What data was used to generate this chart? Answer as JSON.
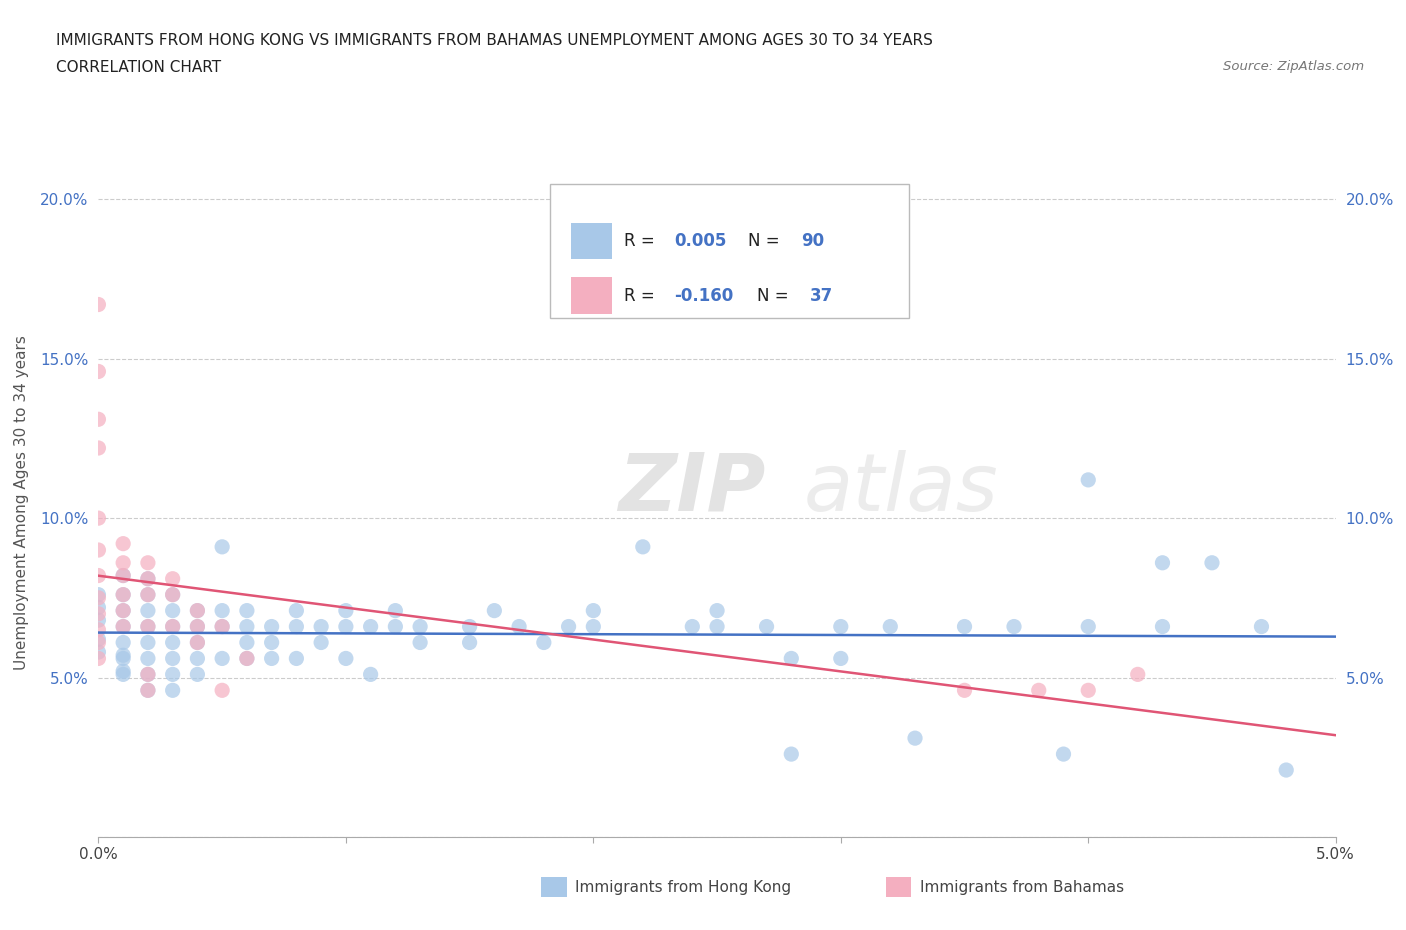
{
  "title_line1": "IMMIGRANTS FROM HONG KONG VS IMMIGRANTS FROM BAHAMAS UNEMPLOYMENT AMONG AGES 30 TO 34 YEARS",
  "title_line2": "CORRELATION CHART",
  "source_text": "Source: ZipAtlas.com",
  "ylabel": "Unemployment Among Ages 30 to 34 years",
  "xlim": [
    0.0,
    0.05
  ],
  "ylim": [
    0.0,
    0.21
  ],
  "watermark_part1": "ZIP",
  "watermark_part2": "atlas",
  "hk_color": "#a8c8e8",
  "bahamas_color": "#f4afc0",
  "hk_line_color": "#4472c4",
  "bahamas_line_color": "#e05575",
  "legend_text_color": "#4472c4",
  "hk_scatter": [
    [
      0.0,
      0.068
    ],
    [
      0.0,
      0.058
    ],
    [
      0.0,
      0.072
    ],
    [
      0.0,
      0.062
    ],
    [
      0.0,
      0.076
    ],
    [
      0.001,
      0.057
    ],
    [
      0.001,
      0.066
    ],
    [
      0.001,
      0.071
    ],
    [
      0.001,
      0.061
    ],
    [
      0.001,
      0.052
    ],
    [
      0.001,
      0.076
    ],
    [
      0.001,
      0.082
    ],
    [
      0.001,
      0.051
    ],
    [
      0.001,
      0.056
    ],
    [
      0.002,
      0.066
    ],
    [
      0.002,
      0.056
    ],
    [
      0.002,
      0.061
    ],
    [
      0.002,
      0.071
    ],
    [
      0.002,
      0.076
    ],
    [
      0.002,
      0.051
    ],
    [
      0.002,
      0.046
    ],
    [
      0.002,
      0.081
    ],
    [
      0.003,
      0.066
    ],
    [
      0.003,
      0.056
    ],
    [
      0.003,
      0.071
    ],
    [
      0.003,
      0.046
    ],
    [
      0.003,
      0.051
    ],
    [
      0.003,
      0.061
    ],
    [
      0.003,
      0.076
    ],
    [
      0.004,
      0.066
    ],
    [
      0.004,
      0.056
    ],
    [
      0.004,
      0.061
    ],
    [
      0.004,
      0.071
    ],
    [
      0.004,
      0.051
    ],
    [
      0.005,
      0.066
    ],
    [
      0.005,
      0.091
    ],
    [
      0.005,
      0.056
    ],
    [
      0.005,
      0.071
    ],
    [
      0.006,
      0.066
    ],
    [
      0.006,
      0.056
    ],
    [
      0.006,
      0.071
    ],
    [
      0.006,
      0.061
    ],
    [
      0.007,
      0.066
    ],
    [
      0.007,
      0.056
    ],
    [
      0.007,
      0.061
    ],
    [
      0.008,
      0.066
    ],
    [
      0.008,
      0.071
    ],
    [
      0.008,
      0.056
    ],
    [
      0.009,
      0.066
    ],
    [
      0.009,
      0.061
    ],
    [
      0.01,
      0.066
    ],
    [
      0.01,
      0.056
    ],
    [
      0.01,
      0.071
    ],
    [
      0.011,
      0.066
    ],
    [
      0.011,
      0.051
    ],
    [
      0.012,
      0.066
    ],
    [
      0.012,
      0.071
    ],
    [
      0.013,
      0.061
    ],
    [
      0.013,
      0.066
    ],
    [
      0.015,
      0.061
    ],
    [
      0.015,
      0.066
    ],
    [
      0.016,
      0.071
    ],
    [
      0.017,
      0.066
    ],
    [
      0.018,
      0.061
    ],
    [
      0.019,
      0.066
    ],
    [
      0.02,
      0.071
    ],
    [
      0.02,
      0.066
    ],
    [
      0.022,
      0.091
    ],
    [
      0.024,
      0.066
    ],
    [
      0.025,
      0.066
    ],
    [
      0.025,
      0.071
    ],
    [
      0.027,
      0.066
    ],
    [
      0.028,
      0.056
    ],
    [
      0.028,
      0.026
    ],
    [
      0.03,
      0.066
    ],
    [
      0.03,
      0.056
    ],
    [
      0.032,
      0.066
    ],
    [
      0.033,
      0.031
    ],
    [
      0.035,
      0.066
    ],
    [
      0.037,
      0.066
    ],
    [
      0.039,
      0.026
    ],
    [
      0.04,
      0.112
    ],
    [
      0.04,
      0.066
    ],
    [
      0.043,
      0.086
    ],
    [
      0.043,
      0.066
    ],
    [
      0.045,
      0.086
    ],
    [
      0.047,
      0.066
    ],
    [
      0.048,
      0.021
    ]
  ],
  "bahamas_scatter": [
    [
      0.0,
      0.07
    ],
    [
      0.0,
      0.065
    ],
    [
      0.0,
      0.075
    ],
    [
      0.0,
      0.122
    ],
    [
      0.0,
      0.09
    ],
    [
      0.0,
      0.1
    ],
    [
      0.0,
      0.082
    ],
    [
      0.0,
      0.131
    ],
    [
      0.0,
      0.146
    ],
    [
      0.0,
      0.167
    ],
    [
      0.0,
      0.056
    ],
    [
      0.0,
      0.061
    ],
    [
      0.001,
      0.082
    ],
    [
      0.001,
      0.086
    ],
    [
      0.001,
      0.076
    ],
    [
      0.001,
      0.092
    ],
    [
      0.001,
      0.066
    ],
    [
      0.001,
      0.071
    ],
    [
      0.002,
      0.081
    ],
    [
      0.002,
      0.076
    ],
    [
      0.002,
      0.086
    ],
    [
      0.002,
      0.066
    ],
    [
      0.002,
      0.051
    ],
    [
      0.002,
      0.046
    ],
    [
      0.003,
      0.076
    ],
    [
      0.003,
      0.066
    ],
    [
      0.003,
      0.081
    ],
    [
      0.004,
      0.066
    ],
    [
      0.004,
      0.071
    ],
    [
      0.004,
      0.061
    ],
    [
      0.005,
      0.066
    ],
    [
      0.005,
      0.046
    ],
    [
      0.006,
      0.056
    ],
    [
      0.035,
      0.046
    ],
    [
      0.038,
      0.046
    ],
    [
      0.04,
      0.046
    ],
    [
      0.042,
      0.051
    ]
  ]
}
